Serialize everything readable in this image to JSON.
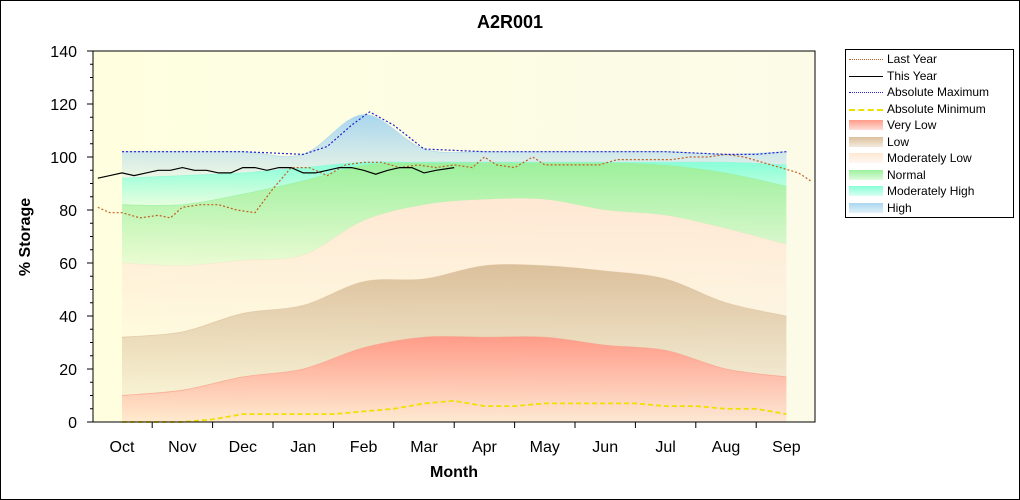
{
  "chart_data": {
    "type": "area",
    "title": "A2R001",
    "xlabel": "Month",
    "ylabel": "% Storage",
    "ylim": [
      0,
      140
    ],
    "y_ticks": [
      0,
      20,
      40,
      60,
      80,
      100,
      120,
      140
    ],
    "categories": [
      "Oct",
      "Nov",
      "Dec",
      "Jan",
      "Feb",
      "Mar",
      "Apr",
      "May",
      "Jun",
      "Jul",
      "Aug",
      "Sep"
    ],
    "legend_placement": "right",
    "band_x": [
      0,
      1,
      2,
      3,
      4,
      5,
      6,
      7,
      8,
      9,
      10,
      11
    ],
    "bands": [
      {
        "name": "Very Low",
        "color": "#ff9b88",
        "lower": [
          0,
          0,
          0,
          0,
          0,
          0,
          0,
          0,
          0,
          0,
          0,
          0
        ],
        "upper": [
          10,
          12,
          17,
          20,
          28,
          32,
          32,
          32,
          29,
          27,
          20,
          17
        ]
      },
      {
        "name": "Low",
        "color": "#dcc09c",
        "lower": [
          10,
          12,
          17,
          20,
          28,
          32,
          32,
          32,
          29,
          27,
          20,
          17
        ],
        "upper": [
          32,
          34,
          41,
          44,
          53,
          54,
          59,
          59,
          57,
          54,
          45,
          40
        ]
      },
      {
        "name": "Moderately Low",
        "color": "#ffe8d4",
        "lower": [
          32,
          34,
          41,
          44,
          53,
          54,
          59,
          59,
          57,
          54,
          45,
          40
        ],
        "upper": [
          60,
          59,
          61,
          63,
          76,
          82,
          84,
          84,
          80,
          78,
          73,
          67
        ]
      },
      {
        "name": "Normal",
        "color": "#9cf09c",
        "lower": [
          60,
          59,
          61,
          63,
          76,
          82,
          84,
          84,
          80,
          78,
          73,
          67
        ],
        "upper": [
          82,
          82,
          86,
          91,
          97,
          98,
          98,
          98,
          98,
          97,
          94,
          89
        ]
      },
      {
        "name": "Moderately High",
        "color": "#88ffd8",
        "lower": [
          82,
          82,
          86,
          91,
          97,
          98,
          98,
          98,
          98,
          97,
          94,
          89
        ],
        "upper": [
          92,
          93,
          94,
          96,
          98,
          98,
          98,
          98,
          98,
          98,
          98,
          97
        ]
      },
      {
        "name": "High",
        "color": "#a9d6ee",
        "lower": [
          92,
          93,
          94,
          96,
          98,
          98,
          98,
          98,
          98,
          98,
          98,
          97
        ],
        "upper": [
          102,
          102,
          102,
          101,
          116,
          103,
          102,
          102,
          102,
          102,
          101,
          102
        ]
      }
    ],
    "series": [
      {
        "name": "Last Year",
        "color": "#c06020",
        "dash": "dot",
        "x": [
          -0.4,
          -0.2,
          0,
          0.3,
          0.6,
          0.8,
          1,
          1.3,
          1.6,
          1.9,
          2.2,
          2.5,
          2.8,
          3.1,
          3.4,
          3.7,
          4,
          4.3,
          4.6,
          4.9,
          5.2,
          5.5,
          5.8,
          6,
          6.2,
          6.5,
          6.8,
          7,
          7.3,
          7.6,
          7.9,
          8.2,
          8.5,
          8.8,
          9.1,
          9.4,
          9.7,
          10,
          10.3,
          10.6,
          10.9,
          11.2,
          11.4
        ],
        "y": [
          81,
          79,
          79,
          77,
          78,
          77,
          81,
          82,
          82,
          80,
          79,
          88,
          96,
          96,
          93,
          97,
          98,
          98,
          96,
          97,
          96,
          97,
          96,
          100,
          97,
          96,
          100,
          97,
          97,
          97,
          97,
          99,
          99,
          99,
          99,
          100,
          100,
          101,
          100,
          98,
          96,
          94,
          91
        ]
      },
      {
        "name": "This Year",
        "color": "#000000",
        "dash": "solid",
        "x": [
          -0.4,
          -0.2,
          0,
          0.2,
          0.4,
          0.6,
          0.8,
          1,
          1.2,
          1.4,
          1.6,
          1.8,
          2,
          2.2,
          2.4,
          2.6,
          2.8,
          3,
          3.2,
          3.4,
          3.6,
          3.8,
          4,
          4.2,
          4.4,
          4.6,
          4.8,
          5,
          5.2,
          5.5
        ],
        "y": [
          92,
          93,
          94,
          93,
          94,
          95,
          95,
          96,
          95,
          95,
          94,
          94,
          96,
          96,
          95,
          96,
          96,
          94,
          94,
          95,
          96,
          96,
          95,
          93.5,
          95,
          96,
          96,
          94,
          95,
          96
        ]
      },
      {
        "name": "Absolute Maximum",
        "color": "#2020d0",
        "dash": "dot",
        "x": [
          0,
          1,
          2,
          2.5,
          3,
          3.4,
          3.8,
          4.1,
          4.5,
          5,
          6,
          7,
          8,
          9,
          10,
          10.5,
          11
        ],
        "y": [
          102,
          102,
          102,
          101.5,
          101,
          104,
          112,
          117,
          112,
          103,
          102,
          102,
          102,
          102,
          101,
          101,
          102
        ]
      },
      {
        "name": "Absolute Minimum",
        "color": "#f0e000",
        "dash": "dash",
        "x": [
          0,
          0.5,
          1,
          1.5,
          2,
          2.5,
          3,
          3.5,
          4,
          4.5,
          5,
          5.5,
          6,
          6.5,
          7,
          7.5,
          8,
          8.5,
          9,
          9.5,
          10,
          10.5,
          11
        ],
        "y": [
          0,
          0,
          0,
          1,
          3,
          3,
          3,
          3,
          4,
          5,
          7,
          8,
          6,
          6,
          7,
          7,
          7,
          7,
          6,
          6,
          5,
          5,
          3
        ]
      }
    ]
  },
  "legend": {
    "items": [
      {
        "label": "Last Year",
        "kind": "line",
        "color": "#c06020",
        "dash": "dot"
      },
      {
        "label": "This Year",
        "kind": "line",
        "color": "#000000",
        "dash": "solid"
      },
      {
        "label": "Absolute Maximum",
        "kind": "line",
        "color": "#2020d0",
        "dash": "dot"
      },
      {
        "label": "Absolute Minimum",
        "kind": "line",
        "color": "#f0e000",
        "dash": "dash"
      },
      {
        "label": "Very Low",
        "kind": "fill",
        "color": "#ff9b88"
      },
      {
        "label": "Low",
        "kind": "fill",
        "color": "#dcc09c"
      },
      {
        "label": "Moderately Low",
        "kind": "fill",
        "color": "#ffe8d4"
      },
      {
        "label": "Normal",
        "kind": "fill",
        "color": "#9cf09c"
      },
      {
        "label": "Moderately High",
        "kind": "fill",
        "color": "#88ffd8"
      },
      {
        "label": "High",
        "kind": "fill",
        "color": "#a9d6ee"
      }
    ]
  }
}
